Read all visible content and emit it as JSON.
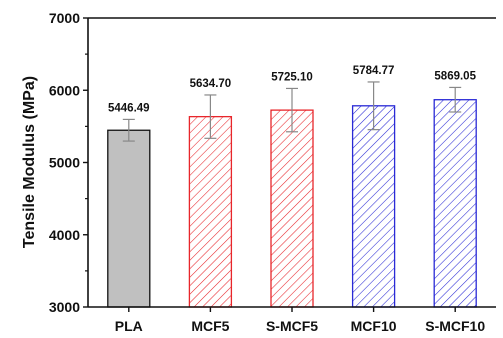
{
  "chart_data": {
    "type": "bar",
    "title": "",
    "xlabel": "",
    "ylabel": "Tensile Modulus (MPa)",
    "ylim": [
      3000,
      7000
    ],
    "yticks": [
      3000,
      4000,
      5000,
      6000,
      7000
    ],
    "grid": false,
    "categories": [
      "PLA",
      "MCF5",
      "S-MCF5",
      "MCF10",
      "S-MCF10"
    ],
    "values": [
      5446.49,
      5634.7,
      5725.1,
      5784.77,
      5869.05
    ],
    "value_labels": [
      "5446.49",
      "5634.70",
      "5725.10",
      "5784.77",
      "5869.05"
    ],
    "errors": [
      150,
      300,
      300,
      330,
      170
    ],
    "styles": [
      {
        "edge": "#111111",
        "fill": "#c0c0c0",
        "hatch": "none"
      },
      {
        "edge": "#e8262b",
        "fill": "#ffffff",
        "hatch": "#e8262b"
      },
      {
        "edge": "#e8262b",
        "fill": "#ffffff",
        "hatch": "#e8262b"
      },
      {
        "edge": "#2a2ad6",
        "fill": "#ffffff",
        "hatch": "#2a2ad6"
      },
      {
        "edge": "#2a2ad6",
        "fill": "#ffffff",
        "hatch": "#2a2ad6"
      }
    ],
    "errorbar_color": "#888888"
  }
}
